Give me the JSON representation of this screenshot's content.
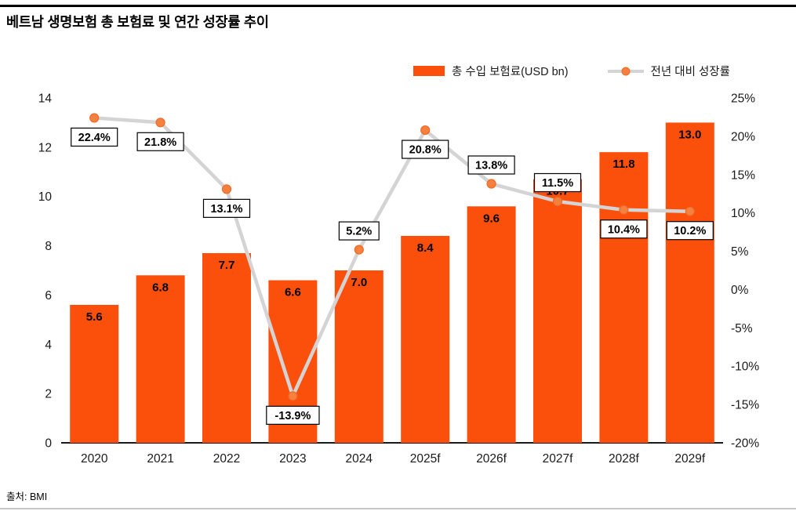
{
  "page": {
    "title": "베트남 생명보험 총 보험료 및 연간 성장률 추이",
    "source": "출처: BMI"
  },
  "legend": {
    "bar_label": "총 수입 보험료(USD bn)",
    "line_label": "전년 대비 성장률"
  },
  "colors": {
    "bar": "#FB4F0C",
    "line": "#D4D4D4",
    "marker_fill": "#F5803F",
    "marker_stroke": "#EF6A25",
    "axis": "#1A1A1A",
    "label_box_bg": "#FFFFFF",
    "label_box_border": "#000000"
  },
  "chart_data": {
    "type": "bar+line",
    "title": "베트남 생명보험 총 보험료 및 연간 성장률 추이",
    "categories": [
      "2020",
      "2021",
      "2022",
      "2023",
      "2024",
      "2025f",
      "2026f",
      "2027f",
      "2028f",
      "2029f"
    ],
    "series": [
      {
        "name": "총 수입 보험료(USD bn)",
        "type": "bar",
        "axis": "left",
        "values": [
          5.6,
          6.8,
          7.7,
          6.6,
          7.0,
          8.4,
          9.6,
          10.7,
          11.8,
          13.0
        ],
        "value_labels": [
          "5.6",
          "6.8",
          "7.7",
          "6.6",
          "7.0",
          "8.4",
          "9.6",
          "10.7",
          "11.8",
          "13.0"
        ]
      },
      {
        "name": "전년 대비 성장률",
        "type": "line",
        "axis": "right",
        "values_pct": [
          22.4,
          21.8,
          13.1,
          -13.9,
          5.2,
          20.8,
          13.8,
          11.5,
          10.4,
          10.2
        ],
        "value_labels": [
          "22.4%",
          "21.8%",
          "13.1%",
          "-13.9%",
          "5.2%",
          "20.8%",
          "13.8%",
          "11.5%",
          "10.4%",
          "10.2%"
        ],
        "label_positions": [
          "below",
          "below",
          "below",
          "below",
          "above",
          "below",
          "above",
          "above",
          "below",
          "below"
        ]
      }
    ],
    "left_axis": {
      "min": 0,
      "max": 14,
      "ticks": [
        0,
        2,
        4,
        6,
        8,
        10,
        12,
        14
      ]
    },
    "right_axis": {
      "min": -20,
      "max": 25,
      "ticks": [
        {
          "value": 25,
          "label": "25%"
        },
        {
          "value": 20,
          "label": "20%"
        },
        {
          "value": 15,
          "label": "15%"
        },
        {
          "value": 10,
          "label": "10%"
        },
        {
          "value": 5,
          "label": "5%"
        },
        {
          "value": 0,
          "label": "0%"
        },
        {
          "value": -5,
          "label": "-5%"
        },
        {
          "value": -10,
          "label": "-10%"
        },
        {
          "value": -15,
          "label": "-15%"
        },
        {
          "value": -20,
          "label": "-20%"
        }
      ]
    },
    "grid": false,
    "legend_position": "top-right"
  }
}
